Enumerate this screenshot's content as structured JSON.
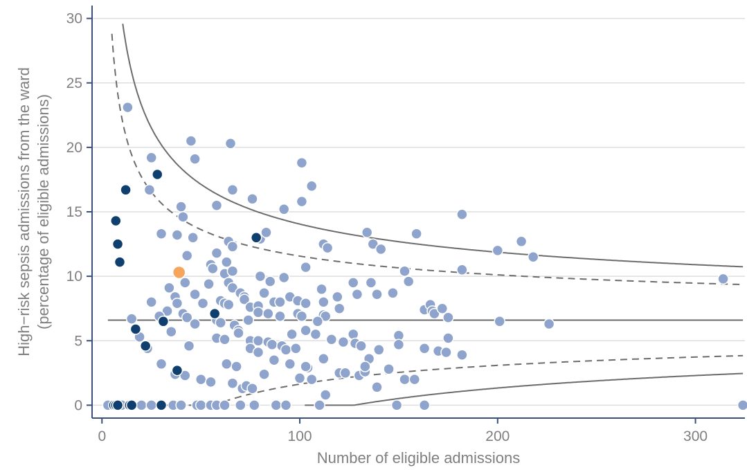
{
  "chart_data": {
    "type": "scatter",
    "title": "",
    "xlabel": "Number of eligible admissions",
    "ylabel_lines": [
      "High−risk sepsis admissions from the ward",
      "(percentage of eligible admissions)"
    ],
    "xlim": [
      -5,
      325
    ],
    "ylim": [
      -1,
      31
    ],
    "x_ticks": [
      0,
      100,
      200,
      300
    ],
    "y_ticks": [
      0,
      5,
      10,
      15,
      20,
      25,
      30
    ],
    "grid": "horizontal",
    "mean_line": 6.6,
    "control_limits": {
      "inner": {
        "style": "dashed",
        "z": 2
      },
      "outer": {
        "style": "solid",
        "z": 3
      }
    },
    "colors": {
      "points": "#8fa4cc",
      "outlier_points": "#0e3f6e",
      "highlight": "#f5a55c",
      "limits": "#6b6b6b",
      "grid": "#dedede",
      "axis": "#3a4e7c"
    },
    "series": [
      {
        "group": "main",
        "points": [
          [
            13,
            23.1
          ],
          [
            25,
            19.2
          ],
          [
            45,
            20.5
          ],
          [
            47,
            19.1
          ],
          [
            65,
            20.3
          ],
          [
            24,
            16.7
          ],
          [
            40,
            15.4
          ],
          [
            41,
            14.6
          ],
          [
            58,
            15.5
          ],
          [
            76,
            16.0
          ],
          [
            66,
            16.7
          ],
          [
            101,
            18.8
          ],
          [
            106,
            17.0
          ],
          [
            101,
            15.8
          ],
          [
            92,
            15.2
          ],
          [
            30,
            13.3
          ],
          [
            38,
            13.2
          ],
          [
            46,
            13.0
          ],
          [
            43,
            11.6
          ],
          [
            64,
            12.7
          ],
          [
            66,
            12.3
          ],
          [
            58,
            11.8
          ],
          [
            80,
            12.9
          ],
          [
            83,
            13.4
          ],
          [
            63,
            11.1
          ],
          [
            112,
            12.5
          ],
          [
            114,
            12.2
          ],
          [
            134,
            13.4
          ],
          [
            137,
            12.5
          ],
          [
            141,
            12.1
          ],
          [
            159,
            13.3
          ],
          [
            182,
            14.8
          ],
          [
            212,
            12.7
          ],
          [
            218,
            11.5
          ],
          [
            200,
            12.0
          ],
          [
            314,
            9.8
          ],
          [
            182,
            10.5
          ],
          [
            153,
            10.4
          ],
          [
            155,
            9.6
          ],
          [
            103,
            10.7
          ],
          [
            55,
            10.9
          ],
          [
            56,
            10.6
          ],
          [
            62,
            10.2
          ],
          [
            66,
            10.4
          ],
          [
            80,
            10.0
          ],
          [
            85,
            9.6
          ],
          [
            92,
            9.9
          ],
          [
            34,
            9.1
          ],
          [
            42,
            9.5
          ],
          [
            54,
            9.4
          ],
          [
            64,
            9.5
          ],
          [
            66,
            9.1
          ],
          [
            70,
            8.7
          ],
          [
            72,
            8.4
          ],
          [
            47,
            8.6
          ],
          [
            37,
            8.4
          ],
          [
            51,
            7.9
          ],
          [
            25,
            8.0
          ],
          [
            33,
            7.3
          ],
          [
            38,
            7.9
          ],
          [
            60,
            8.1
          ],
          [
            62,
            7.9
          ],
          [
            64,
            7.8
          ],
          [
            72,
            8.2
          ],
          [
            75,
            7.6
          ],
          [
            79,
            7.7
          ],
          [
            82,
            8.7
          ],
          [
            87,
            8.0
          ],
          [
            90,
            8.0
          ],
          [
            95,
            8.4
          ],
          [
            99,
            8.1
          ],
          [
            103,
            7.9
          ],
          [
            111,
            9.0
          ],
          [
            112,
            8.0
          ],
          [
            119,
            8.4
          ],
          [
            127,
            9.5
          ],
          [
            129,
            8.6
          ],
          [
            136,
            9.5
          ],
          [
            139,
            8.6
          ],
          [
            147,
            8.7
          ],
          [
            163,
            7.4
          ],
          [
            166,
            7.8
          ],
          [
            167,
            7.3
          ],
          [
            168,
            7.1
          ],
          [
            172,
            7.5
          ],
          [
            175,
            6.8
          ],
          [
            201,
            6.5
          ],
          [
            226,
            6.3
          ],
          [
            41,
            7.1
          ],
          [
            43,
            6.8
          ],
          [
            47,
            6.3
          ],
          [
            58,
            6.6
          ],
          [
            60,
            6.4
          ],
          [
            67,
            6.2
          ],
          [
            69,
            5.8
          ],
          [
            74,
            6.6
          ],
          [
            79,
            7.2
          ],
          [
            84,
            7.1
          ],
          [
            90,
            6.9
          ],
          [
            99,
            7.1
          ],
          [
            101,
            6.9
          ],
          [
            112,
            7.0
          ],
          [
            113,
            6.9
          ],
          [
            120,
            7.5
          ],
          [
            109,
            6.5
          ],
          [
            103,
            5.8
          ],
          [
            108,
            5.5
          ],
          [
            116,
            5.1
          ],
          [
            122,
            4.9
          ],
          [
            127,
            5.5
          ],
          [
            128,
            4.8
          ],
          [
            131,
            4.6
          ],
          [
            135,
            3.6
          ],
          [
            140,
            4.3
          ],
          [
            145,
            2.8
          ],
          [
            150,
            5.4
          ],
          [
            150,
            4.7
          ],
          [
            163,
            4.4
          ],
          [
            170,
            4.2
          ],
          [
            175,
            5.2
          ],
          [
            174,
            4.1
          ],
          [
            182,
            3.9
          ],
          [
            15,
            6.7
          ],
          [
            19,
            5.3
          ],
          [
            23,
            4.4
          ],
          [
            29,
            6.9
          ],
          [
            35,
            5.7
          ],
          [
            44,
            4.6
          ],
          [
            58,
            5.2
          ],
          [
            62,
            5.1
          ],
          [
            69,
            5.6
          ],
          [
            75,
            5.0
          ],
          [
            79,
            5.0
          ],
          [
            84,
            4.9
          ],
          [
            86,
            4.7
          ],
          [
            91,
            4.6
          ],
          [
            93,
            4.3
          ],
          [
            96,
            5.5
          ],
          [
            98,
            4.4
          ],
          [
            104,
            2.9
          ],
          [
            106,
            2.0
          ],
          [
            112,
            3.6
          ],
          [
            120,
            2.5
          ],
          [
            123,
            2.5
          ],
          [
            130,
            2.3
          ],
          [
            133,
            2.6
          ],
          [
            133,
            3.0
          ],
          [
            139,
            1.4
          ],
          [
            153,
            2.0
          ],
          [
            158,
            2.0
          ],
          [
            30,
            3.2
          ],
          [
            37,
            2.4
          ],
          [
            42,
            2.3
          ],
          [
            50,
            2.0
          ],
          [
            55,
            1.8
          ],
          [
            63,
            3.2
          ],
          [
            66,
            1.7
          ],
          [
            71,
            1.3
          ],
          [
            73,
            1.5
          ],
          [
            76,
            1.3
          ],
          [
            68,
            3.0
          ],
          [
            75,
            4.4
          ],
          [
            82,
            2.4
          ],
          [
            87,
            3.5
          ],
          [
            95,
            3.2
          ],
          [
            100,
            2.1
          ],
          [
            103,
            3.0
          ],
          [
            113,
            0.8
          ],
          [
            79,
            4.1
          ],
          [
            3,
            0
          ],
          [
            10,
            0
          ],
          [
            20,
            0
          ],
          [
            25,
            0
          ],
          [
            36,
            0
          ],
          [
            40,
            0
          ],
          [
            48,
            0
          ],
          [
            50,
            0
          ],
          [
            55,
            0
          ],
          [
            58,
            0
          ],
          [
            62,
            0
          ],
          [
            70,
            0
          ],
          [
            77,
            0
          ],
          [
            88,
            0
          ],
          [
            93,
            0
          ],
          [
            110,
            0
          ],
          [
            149,
            0
          ],
          [
            163,
            0
          ],
          [
            324,
            0
          ]
        ]
      },
      {
        "group": "outside_limits",
        "points": [
          [
            7,
            14.3
          ],
          [
            8,
            12.5
          ],
          [
            9,
            11.1
          ],
          [
            12,
            16.7
          ],
          [
            28,
            17.9
          ],
          [
            17,
            5.9
          ],
          [
            22,
            4.6
          ],
          [
            31,
            6.5
          ],
          [
            57,
            7.1
          ],
          [
            78,
            13.0
          ],
          [
            38,
            2.7
          ],
          [
            6,
            0
          ],
          [
            7,
            0
          ],
          [
            8,
            0
          ],
          [
            14,
            0
          ],
          [
            15,
            0
          ],
          [
            30,
            0
          ]
        ]
      },
      {
        "group": "highlighted",
        "points": [
          [
            39,
            10.3
          ]
        ]
      }
    ]
  }
}
